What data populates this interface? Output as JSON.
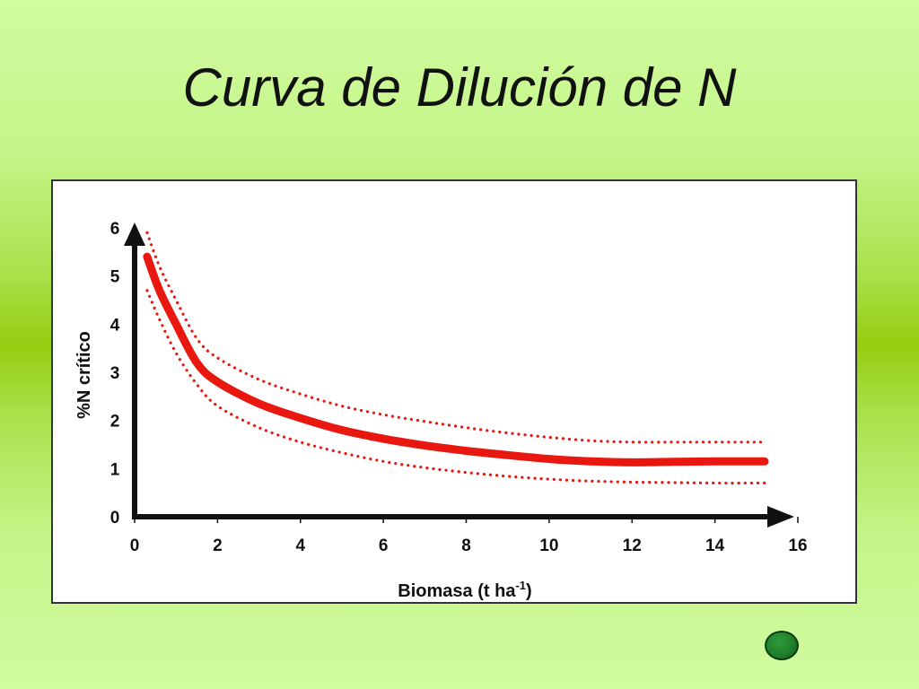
{
  "slide": {
    "title": "Curva de Dilución de N"
  },
  "colors": {
    "background_center": "#96cc10",
    "background_edge": "#d2fca0",
    "curve": "#e8170f",
    "axis": "#111111"
  },
  "chart_data": {
    "type": "line",
    "title": "",
    "xlabel": "Biomasa (t ha-1)",
    "xlabel_parts": {
      "main": "Biomasa (t ha",
      "superscript": "-1",
      "suffix": ")"
    },
    "ylabel": "%N crítico",
    "xlim": [
      0,
      16
    ],
    "ylim": [
      0,
      6
    ],
    "x_ticks": [
      "0",
      "2",
      "4",
      "6",
      "8",
      "10",
      "12",
      "14",
      "16"
    ],
    "y_ticks": [
      "0",
      "1",
      "2",
      "3",
      "4",
      "5",
      "6"
    ],
    "grid": false,
    "legend": false,
    "series": [
      {
        "style": "solid-thick",
        "x": [
          0.3,
          0.6,
          1.0,
          1.5,
          2.0,
          3.0,
          4.0,
          5.0,
          6.0,
          7.0,
          8.0,
          9.0,
          10.0,
          11.0,
          12.0,
          13.0,
          14.0,
          15.2
        ],
        "y": [
          5.4,
          4.7,
          4.0,
          3.2,
          2.8,
          2.35,
          2.05,
          1.8,
          1.62,
          1.48,
          1.37,
          1.28,
          1.2,
          1.15,
          1.13,
          1.14,
          1.15,
          1.15
        ]
      },
      {
        "style": "dotted-upper",
        "x": [
          0.3,
          0.6,
          1.0,
          1.5,
          2.0,
          3.0,
          4.0,
          5.0,
          6.0,
          7.0,
          8.0,
          9.0,
          10.0,
          11.0,
          12.0,
          13.0,
          14.0,
          15.2
        ],
        "y": [
          5.9,
          5.2,
          4.5,
          3.7,
          3.3,
          2.85,
          2.55,
          2.3,
          2.12,
          1.98,
          1.85,
          1.74,
          1.65,
          1.58,
          1.55,
          1.55,
          1.55,
          1.55
        ]
      },
      {
        "style": "dotted-lower",
        "x": [
          0.3,
          0.6,
          1.0,
          1.5,
          2.0,
          3.0,
          4.0,
          5.0,
          6.0,
          7.0,
          8.0,
          9.0,
          10.0,
          11.0,
          12.0,
          13.0,
          14.0,
          15.2
        ],
        "y": [
          4.7,
          4.1,
          3.4,
          2.75,
          2.3,
          1.85,
          1.55,
          1.33,
          1.15,
          1.02,
          0.92,
          0.84,
          0.78,
          0.74,
          0.72,
          0.71,
          0.7,
          0.7
        ]
      }
    ]
  }
}
